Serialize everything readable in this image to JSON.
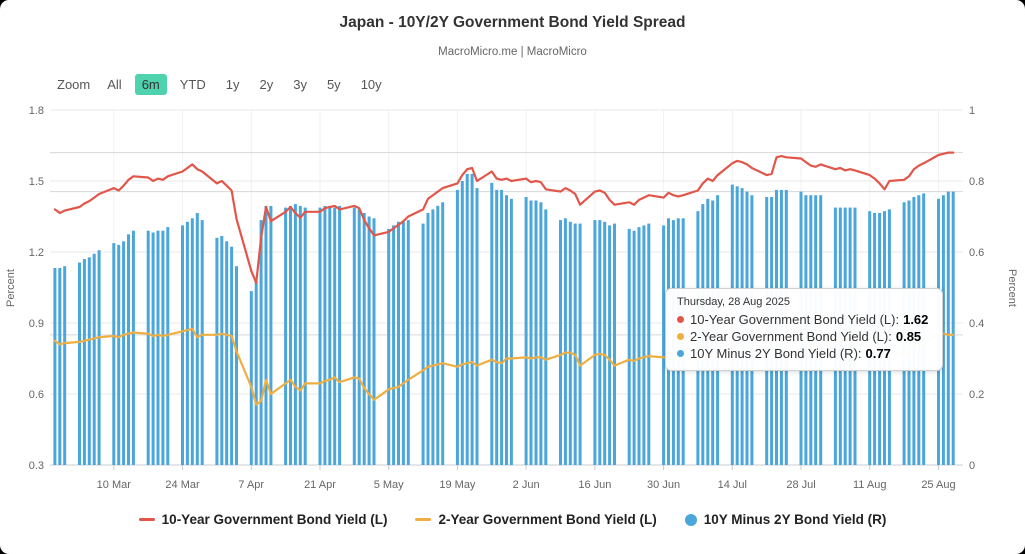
{
  "header": {
    "title": "Japan - 10Y/2Y Government Bond Yield Spread",
    "subtitle": "MacroMicro.me | MacroMicro"
  },
  "zoom": {
    "label": "Zoom",
    "options": [
      {
        "label": "All",
        "active": false
      },
      {
        "label": "6m",
        "active": true
      },
      {
        "label": "YTD",
        "active": false
      },
      {
        "label": "1y",
        "active": false
      },
      {
        "label": "2y",
        "active": false
      },
      {
        "label": "3y",
        "active": false
      },
      {
        "label": "5y",
        "active": false
      },
      {
        "label": "10y",
        "active": false
      }
    ]
  },
  "tooltip": {
    "date_line": "Thursday, 28 Aug 2025",
    "rows": [
      {
        "label": "10-Year Government Bond Yield (L):",
        "value": "1.62"
      },
      {
        "label": "2-Year Government Bond Yield (L):",
        "value": "0.85"
      },
      {
        "label": "10Y Minus 2Y Bond Yield (R):",
        "value": "0.77"
      }
    ]
  },
  "legend": {
    "items": [
      {
        "label": "10-Year Government Bond Yield (L)",
        "marker": "line"
      },
      {
        "label": "2-Year Government Bond Yield (L)",
        "marker": "line"
      },
      {
        "label": "10Y Minus 2Y Bond Yield (R)",
        "marker": "circle"
      }
    ]
  },
  "chart_data": {
    "type": "mixed",
    "title": "Japan - 10Y/2Y Government Bond Yield Spread",
    "x_domain": [
      "2025-02-25",
      "2025-08-30"
    ],
    "x_ticks": [
      {
        "date": "2025-03-10",
        "label": "10 Mar"
      },
      {
        "date": "2025-03-24",
        "label": "24 Mar"
      },
      {
        "date": "2025-04-07",
        "label": "7 Apr"
      },
      {
        "date": "2025-04-21",
        "label": "21 Apr"
      },
      {
        "date": "2025-05-05",
        "label": "5 May"
      },
      {
        "date": "2025-05-19",
        "label": "19 May"
      },
      {
        "date": "2025-06-02",
        "label": "2 Jun"
      },
      {
        "date": "2025-06-16",
        "label": "16 Jun"
      },
      {
        "date": "2025-06-30",
        "label": "30 Jun"
      },
      {
        "date": "2025-07-14",
        "label": "14 Jul"
      },
      {
        "date": "2025-07-28",
        "label": "28 Jul"
      },
      {
        "date": "2025-08-11",
        "label": "11 Aug"
      },
      {
        "date": "2025-08-25",
        "label": "25 Aug"
      }
    ],
    "y_left": {
      "title": "Percent",
      "min": 0.3,
      "max": 1.8,
      "ticks": [
        0.3,
        0.6,
        0.9,
        1.2,
        1.5,
        1.8
      ]
    },
    "y_right": {
      "title": "Percent",
      "min": 0,
      "max": 1,
      "ticks": [
        0,
        0.2,
        0.4,
        0.6,
        0.8,
        1
      ]
    },
    "grid": true,
    "legend_position": "bottom",
    "latest_lines": [
      {
        "axis": "L",
        "value": 1.62
      },
      {
        "axis": "L",
        "value": 0.85
      },
      {
        "axis": "R",
        "value": 0.77
      }
    ],
    "dates": [
      "2025-02-26",
      "2025-02-27",
      "2025-02-28",
      "2025-03-03",
      "2025-03-04",
      "2025-03-05",
      "2025-03-06",
      "2025-03-07",
      "2025-03-10",
      "2025-03-11",
      "2025-03-12",
      "2025-03-13",
      "2025-03-14",
      "2025-03-17",
      "2025-03-18",
      "2025-03-19",
      "2025-03-20",
      "2025-03-21",
      "2025-03-24",
      "2025-03-25",
      "2025-03-26",
      "2025-03-27",
      "2025-03-28",
      "2025-03-31",
      "2025-04-01",
      "2025-04-02",
      "2025-04-03",
      "2025-04-04",
      "2025-04-07",
      "2025-04-08",
      "2025-04-09",
      "2025-04-10",
      "2025-04-11",
      "2025-04-14",
      "2025-04-15",
      "2025-04-16",
      "2025-04-17",
      "2025-04-18",
      "2025-04-21",
      "2025-04-22",
      "2025-04-23",
      "2025-04-24",
      "2025-04-25",
      "2025-04-28",
      "2025-04-29",
      "2025-04-30",
      "2025-05-01",
      "2025-05-02",
      "2025-05-05",
      "2025-05-06",
      "2025-05-07",
      "2025-05-08",
      "2025-05-09",
      "2025-05-12",
      "2025-05-13",
      "2025-05-14",
      "2025-05-15",
      "2025-05-16",
      "2025-05-19",
      "2025-05-20",
      "2025-05-21",
      "2025-05-22",
      "2025-05-23",
      "2025-05-26",
      "2025-05-27",
      "2025-05-28",
      "2025-05-29",
      "2025-05-30",
      "2025-06-02",
      "2025-06-03",
      "2025-06-04",
      "2025-06-05",
      "2025-06-06",
      "2025-06-09",
      "2025-06-10",
      "2025-06-11",
      "2025-06-12",
      "2025-06-13",
      "2025-06-16",
      "2025-06-17",
      "2025-06-18",
      "2025-06-19",
      "2025-06-20",
      "2025-06-23",
      "2025-06-24",
      "2025-06-25",
      "2025-06-26",
      "2025-06-27",
      "2025-06-30",
      "2025-07-01",
      "2025-07-02",
      "2025-07-03",
      "2025-07-04",
      "2025-07-07",
      "2025-07-08",
      "2025-07-09",
      "2025-07-10",
      "2025-07-11",
      "2025-07-14",
      "2025-07-15",
      "2025-07-16",
      "2025-07-17",
      "2025-07-18",
      "2025-07-21",
      "2025-07-22",
      "2025-07-23",
      "2025-07-24",
      "2025-07-25",
      "2025-07-28",
      "2025-07-29",
      "2025-07-30",
      "2025-07-31",
      "2025-08-01",
      "2025-08-04",
      "2025-08-05",
      "2025-08-06",
      "2025-08-07",
      "2025-08-08",
      "2025-08-11",
      "2025-08-12",
      "2025-08-13",
      "2025-08-14",
      "2025-08-15",
      "2025-08-18",
      "2025-08-19",
      "2025-08-20",
      "2025-08-21",
      "2025-08-22",
      "2025-08-25",
      "2025-08-26",
      "2025-08-27",
      "2025-08-28"
    ],
    "series": [
      {
        "name": "10-Year Government Bond Yield (L)",
        "type": "line",
        "axis": "L",
        "color": "#e2564a",
        "values": [
          1.38,
          1.365,
          1.375,
          1.39,
          1.405,
          1.415,
          1.43,
          1.445,
          1.47,
          1.46,
          1.48,
          1.505,
          1.52,
          1.515,
          1.5,
          1.51,
          1.505,
          1.52,
          1.54,
          1.555,
          1.57,
          1.55,
          1.54,
          1.49,
          1.5,
          1.48,
          1.46,
          1.34,
          1.12,
          1.07,
          1.26,
          1.39,
          1.33,
          1.37,
          1.39,
          1.365,
          1.345,
          1.37,
          1.37,
          1.385,
          1.39,
          1.395,
          1.38,
          1.395,
          1.385,
          1.335,
          1.3,
          1.27,
          1.285,
          1.3,
          1.315,
          1.33,
          1.35,
          1.38,
          1.425,
          1.44,
          1.455,
          1.47,
          1.49,
          1.525,
          1.55,
          1.555,
          1.5,
          1.54,
          1.51,
          1.505,
          1.51,
          1.5,
          1.51,
          1.495,
          1.5,
          1.495,
          1.465,
          1.455,
          1.47,
          1.46,
          1.445,
          1.4,
          1.455,
          1.46,
          1.45,
          1.42,
          1.4,
          1.41,
          1.4,
          1.42,
          1.43,
          1.44,
          1.43,
          1.45,
          1.44,
          1.435,
          1.44,
          1.46,
          1.49,
          1.51,
          1.5,
          1.525,
          1.575,
          1.585,
          1.58,
          1.57,
          1.555,
          1.525,
          1.53,
          1.6,
          1.605,
          1.6,
          1.595,
          1.58,
          1.565,
          1.56,
          1.57,
          1.55,
          1.555,
          1.545,
          1.55,
          1.545,
          1.525,
          1.51,
          1.49,
          1.465,
          1.5,
          1.505,
          1.52,
          1.55,
          1.565,
          1.575,
          1.61,
          1.615,
          1.62,
          1.62
        ]
      },
      {
        "name": "2-Year Government Bond Yield (L)",
        "type": "line",
        "axis": "L",
        "color": "#efae42",
        "values": [
          0.825,
          0.81,
          0.815,
          0.82,
          0.825,
          0.83,
          0.835,
          0.84,
          0.845,
          0.84,
          0.85,
          0.855,
          0.86,
          0.855,
          0.845,
          0.85,
          0.845,
          0.85,
          0.865,
          0.87,
          0.875,
          0.84,
          0.85,
          0.85,
          0.855,
          0.85,
          0.845,
          0.78,
          0.63,
          0.555,
          0.57,
          0.66,
          0.6,
          0.645,
          0.66,
          0.63,
          0.615,
          0.645,
          0.645,
          0.655,
          0.66,
          0.67,
          0.65,
          0.67,
          0.665,
          0.625,
          0.6,
          0.575,
          0.62,
          0.625,
          0.63,
          0.645,
          0.66,
          0.7,
          0.715,
          0.72,
          0.725,
          0.73,
          0.715,
          0.725,
          0.73,
          0.735,
          0.72,
          0.745,
          0.735,
          0.73,
          0.75,
          0.75,
          0.755,
          0.75,
          0.755,
          0.755,
          0.745,
          0.765,
          0.775,
          0.775,
          0.765,
          0.72,
          0.765,
          0.77,
          0.765,
          0.745,
          0.72,
          0.745,
          0.74,
          0.75,
          0.755,
          0.76,
          0.755,
          0.755,
          0.75,
          0.74,
          0.745,
          0.745,
          0.755,
          0.76,
          0.755,
          0.765,
          0.785,
          0.8,
          0.8,
          0.8,
          0.795,
          0.77,
          0.775,
          0.825,
          0.83,
          0.825,
          0.825,
          0.82,
          0.805,
          0.8,
          0.81,
          0.825,
          0.83,
          0.82,
          0.825,
          0.82,
          0.81,
          0.8,
          0.78,
          0.75,
          0.78,
          0.765,
          0.775,
          0.795,
          0.805,
          0.81,
          0.86,
          0.855,
          0.85,
          0.85
        ]
      },
      {
        "name": "10Y Minus 2Y Bond Yield (R)",
        "type": "column",
        "axis": "R",
        "color": "#4ba6d9",
        "values": [
          0.555,
          0.555,
          0.56,
          0.57,
          0.58,
          0.585,
          0.595,
          0.605,
          0.625,
          0.62,
          0.63,
          0.65,
          0.66,
          0.66,
          0.655,
          0.66,
          0.66,
          0.67,
          0.675,
          0.685,
          0.695,
          0.71,
          0.69,
          0.64,
          0.645,
          0.63,
          0.615,
          0.56,
          0.49,
          0.515,
          0.69,
          0.73,
          0.73,
          0.725,
          0.73,
          0.735,
          0.73,
          0.725,
          0.725,
          0.73,
          0.73,
          0.725,
          0.73,
          0.725,
          0.72,
          0.71,
          0.7,
          0.695,
          0.665,
          0.675,
          0.685,
          0.685,
          0.69,
          0.68,
          0.71,
          0.72,
          0.73,
          0.74,
          0.775,
          0.8,
          0.82,
          0.82,
          0.78,
          0.795,
          0.775,
          0.775,
          0.76,
          0.75,
          0.755,
          0.745,
          0.745,
          0.74,
          0.72,
          0.69,
          0.695,
          0.685,
          0.68,
          0.68,
          0.69,
          0.69,
          0.685,
          0.675,
          0.68,
          0.665,
          0.66,
          0.67,
          0.675,
          0.68,
          0.675,
          0.695,
          0.69,
          0.695,
          0.695,
          0.715,
          0.735,
          0.75,
          0.745,
          0.76,
          0.79,
          0.785,
          0.78,
          0.77,
          0.76,
          0.755,
          0.755,
          0.775,
          0.775,
          0.775,
          0.77,
          0.76,
          0.76,
          0.76,
          0.76,
          0.725,
          0.725,
          0.725,
          0.725,
          0.725,
          0.715,
          0.71,
          0.71,
          0.715,
          0.72,
          0.74,
          0.745,
          0.755,
          0.76,
          0.765,
          0.75,
          0.76,
          0.77,
          0.77
        ]
      }
    ]
  }
}
